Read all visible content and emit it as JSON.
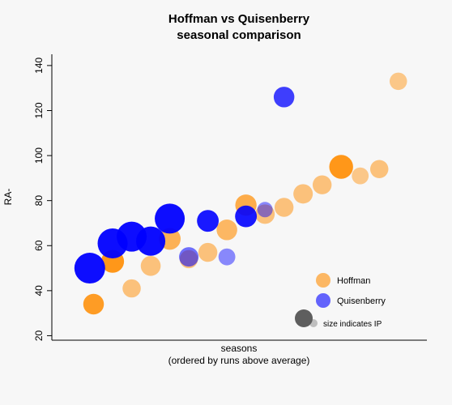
{
  "chart_data": {
    "type": "scatter",
    "title": "Hoffman vs Quisenberry",
    "subtitle": "seasonal comparison",
    "xlabel": "seasons",
    "xlabel_sub": "(ordered by runs above average)",
    "ylabel": "RA-",
    "ylim": [
      18,
      145
    ],
    "yticks": [
      "20",
      "40",
      "60",
      "80",
      "100",
      "120",
      "140"
    ],
    "ytick_values": [
      20,
      40,
      60,
      80,
      100,
      120,
      140
    ],
    "xlim": [
      0,
      18.5
    ],
    "grid": false,
    "legend_position": "bottom-right",
    "series": [
      {
        "name": "Hoffman",
        "color": "#ff8c00",
        "points": [
          {
            "x": 1.0,
            "y": 34,
            "ip": 0.45,
            "opacity": 0.85
          },
          {
            "x": 2.0,
            "y": 53,
            "ip": 0.55,
            "opacity": 0.9
          },
          {
            "x": 3.0,
            "y": 41,
            "ip": 0.35,
            "opacity": 0.5
          },
          {
            "x": 4.0,
            "y": 51,
            "ip": 0.42,
            "opacity": 0.5
          },
          {
            "x": 5.0,
            "y": 63,
            "ip": 0.5,
            "opacity": 0.65
          },
          {
            "x": 6.0,
            "y": 54,
            "ip": 0.35,
            "opacity": 0.5
          },
          {
            "x": 7.0,
            "y": 57,
            "ip": 0.38,
            "opacity": 0.5
          },
          {
            "x": 8.0,
            "y": 67,
            "ip": 0.45,
            "opacity": 0.6
          },
          {
            "x": 9.0,
            "y": 78,
            "ip": 0.48,
            "opacity": 0.7
          },
          {
            "x": 10.0,
            "y": 74,
            "ip": 0.4,
            "opacity": 0.5
          },
          {
            "x": 11.0,
            "y": 77,
            "ip": 0.38,
            "opacity": 0.5
          },
          {
            "x": 12.0,
            "y": 83,
            "ip": 0.4,
            "opacity": 0.5
          },
          {
            "x": 13.0,
            "y": 87,
            "ip": 0.38,
            "opacity": 0.5
          },
          {
            "x": 14.0,
            "y": 95,
            "ip": 0.6,
            "opacity": 0.9
          },
          {
            "x": 15.0,
            "y": 91,
            "ip": 0.3,
            "opacity": 0.45
          },
          {
            "x": 16.0,
            "y": 94,
            "ip": 0.35,
            "opacity": 0.5
          },
          {
            "x": 17.0,
            "y": 133,
            "ip": 0.32,
            "opacity": 0.45
          }
        ]
      },
      {
        "name": "Quisenberry",
        "color": "#0000ff",
        "points": [
          {
            "x": 0.8,
            "y": 50,
            "ip": 1.0,
            "opacity": 0.95
          },
          {
            "x": 2.0,
            "y": 61,
            "ip": 0.95,
            "opacity": 0.95
          },
          {
            "x": 3.0,
            "y": 64,
            "ip": 0.95,
            "opacity": 0.95
          },
          {
            "x": 4.0,
            "y": 62,
            "ip": 0.9,
            "opacity": 0.95
          },
          {
            "x": 5.0,
            "y": 72,
            "ip": 0.95,
            "opacity": 0.95
          },
          {
            "x": 6.0,
            "y": 55,
            "ip": 0.4,
            "opacity": 0.55
          },
          {
            "x": 7.0,
            "y": 71,
            "ip": 0.5,
            "opacity": 0.9
          },
          {
            "x": 8.0,
            "y": 55,
            "ip": 0.3,
            "opacity": 0.45
          },
          {
            "x": 9.0,
            "y": 73,
            "ip": 0.5,
            "opacity": 0.9
          },
          {
            "x": 10.0,
            "y": 76,
            "ip": 0.25,
            "opacity": 0.45
          },
          {
            "x": 11.0,
            "y": 126,
            "ip": 0.45,
            "opacity": 0.75
          }
        ]
      }
    ],
    "legend": {
      "entries": [
        {
          "label": "Hoffman",
          "color": "#ff8c00"
        },
        {
          "label": "Quisenberry",
          "color": "#0000ff"
        }
      ],
      "size_note": "size indicates IP",
      "size_note_color": "#555555"
    }
  }
}
